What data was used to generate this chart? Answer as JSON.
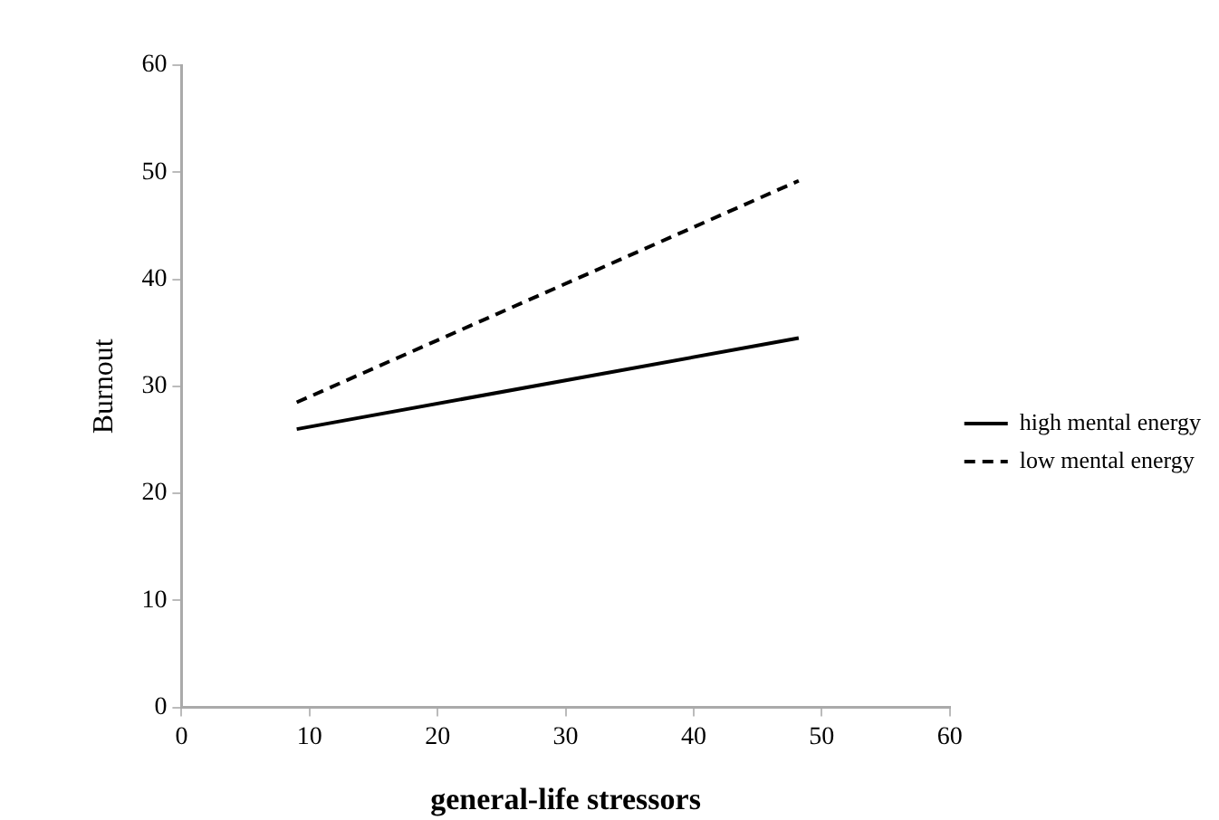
{
  "chart_data": {
    "type": "line",
    "xlabel": "general-life stressors",
    "ylabel": "Burnout",
    "xlim": [
      0,
      60
    ],
    "xticks": [
      0,
      10,
      20,
      30,
      40,
      50,
      60
    ],
    "ylim": [
      0,
      60
    ],
    "yticks": [
      0,
      10,
      20,
      30,
      40,
      50,
      60
    ],
    "x": [
      9.0,
      48.2
    ],
    "grid": false,
    "legend": "right",
    "marker": "none",
    "series": [
      {
        "name": "high mental energy",
        "color": "#000000",
        "line_style": "solid",
        "values": [
          26.0,
          34.5
        ]
      },
      {
        "name": "low mental energy",
        "color": "#000000",
        "line_style": "dashed",
        "values": [
          28.5,
          49.2
        ]
      }
    ]
  }
}
